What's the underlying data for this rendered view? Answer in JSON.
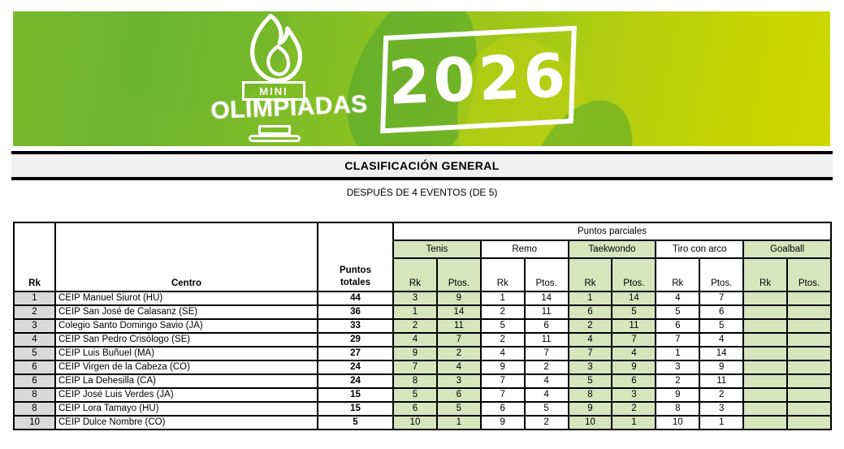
{
  "banner": {
    "logo_mini": "MINI",
    "logo_olimpiadas": "OLIMPIADAS",
    "year": "2026"
  },
  "title": "CLASIFICACIÓN GENERAL",
  "subtitle": "DESPUÉS DE 4 EVENTOS (DE 5)",
  "colors": {
    "banner_green_left": "#79b92c",
    "banner_green_right": "#cdd900",
    "cell_green": "#d8e4bc",
    "cell_gray": "#d9d9d9",
    "title_band_gray": "#f0f0f0"
  },
  "table": {
    "header": {
      "rank": "Rk",
      "center": "Centro",
      "totals": "Puntos totales",
      "partials": "Puntos parciales",
      "sub_rank": "Rk",
      "sub_points": "Ptos."
    },
    "sports": [
      {
        "name": "Tenis",
        "shaded": true
      },
      {
        "name": "Remo",
        "shaded": false
      },
      {
        "name": "Taekwondo",
        "shaded": true
      },
      {
        "name": "Tiro con arco",
        "shaded": false
      },
      {
        "name": "Goalball",
        "shaded": true
      }
    ],
    "rows": [
      {
        "rank": "1",
        "center": "CEIP Manuel Siurot (HU)",
        "total": "44",
        "scores": [
          [
            "3",
            "9"
          ],
          [
            "1",
            "14"
          ],
          [
            "1",
            "14"
          ],
          [
            "4",
            "7"
          ],
          [
            "",
            ""
          ]
        ]
      },
      {
        "rank": "2",
        "center": "CEIP San José de Calasanz (SE)",
        "total": "36",
        "scores": [
          [
            "1",
            "14"
          ],
          [
            "2",
            "11"
          ],
          [
            "6",
            "5"
          ],
          [
            "5",
            "6"
          ],
          [
            "",
            ""
          ]
        ]
      },
      {
        "rank": "3",
        "center": "Colegio Santo Domingo Savio (JA)",
        "total": "33",
        "scores": [
          [
            "2",
            "11"
          ],
          [
            "5",
            "6"
          ],
          [
            "2",
            "11"
          ],
          [
            "6",
            "5"
          ],
          [
            "",
            ""
          ]
        ]
      },
      {
        "rank": "4",
        "center": "CEIP San Pedro Crisólogo (SE)",
        "total": "29",
        "scores": [
          [
            "4",
            "7"
          ],
          [
            "2",
            "11"
          ],
          [
            "4",
            "7"
          ],
          [
            "7",
            "4"
          ],
          [
            "",
            ""
          ]
        ]
      },
      {
        "rank": "5",
        "center": "CEIP Luis Buñuel (MA)",
        "total": "27",
        "scores": [
          [
            "9",
            "2"
          ],
          [
            "4",
            "7"
          ],
          [
            "7",
            "4"
          ],
          [
            "1",
            "14"
          ],
          [
            "",
            ""
          ]
        ]
      },
      {
        "rank": "6",
        "center": "CEIP Virgen de la Cabeza (CO)",
        "total": "24",
        "scores": [
          [
            "7",
            "4"
          ],
          [
            "9",
            "2"
          ],
          [
            "3",
            "9"
          ],
          [
            "3",
            "9"
          ],
          [
            "",
            ""
          ]
        ]
      },
      {
        "rank": "6",
        "center": "CEIP La Dehesilla (CA)",
        "total": "24",
        "scores": [
          [
            "8",
            "3"
          ],
          [
            "7",
            "4"
          ],
          [
            "5",
            "6"
          ],
          [
            "2",
            "11"
          ],
          [
            "",
            ""
          ]
        ]
      },
      {
        "rank": "8",
        "center": "CEIP José Luis Verdes (JA)",
        "total": "15",
        "scores": [
          [
            "5",
            "6"
          ],
          [
            "7",
            "4"
          ],
          [
            "8",
            "3"
          ],
          [
            "9",
            "2"
          ],
          [
            "",
            ""
          ]
        ]
      },
      {
        "rank": "8",
        "center": "CEIP Lora Tamayo (HU)",
        "total": "15",
        "scores": [
          [
            "6",
            "5"
          ],
          [
            "6",
            "5"
          ],
          [
            "9",
            "2"
          ],
          [
            "8",
            "3"
          ],
          [
            "",
            ""
          ]
        ]
      },
      {
        "rank": "10",
        "center": "CEIP Dulce Nombre (CO)",
        "total": "5",
        "scores": [
          [
            "10",
            "1"
          ],
          [
            "9",
            "2"
          ],
          [
            "10",
            "1"
          ],
          [
            "10",
            "1"
          ],
          [
            "",
            ""
          ]
        ]
      }
    ]
  }
}
